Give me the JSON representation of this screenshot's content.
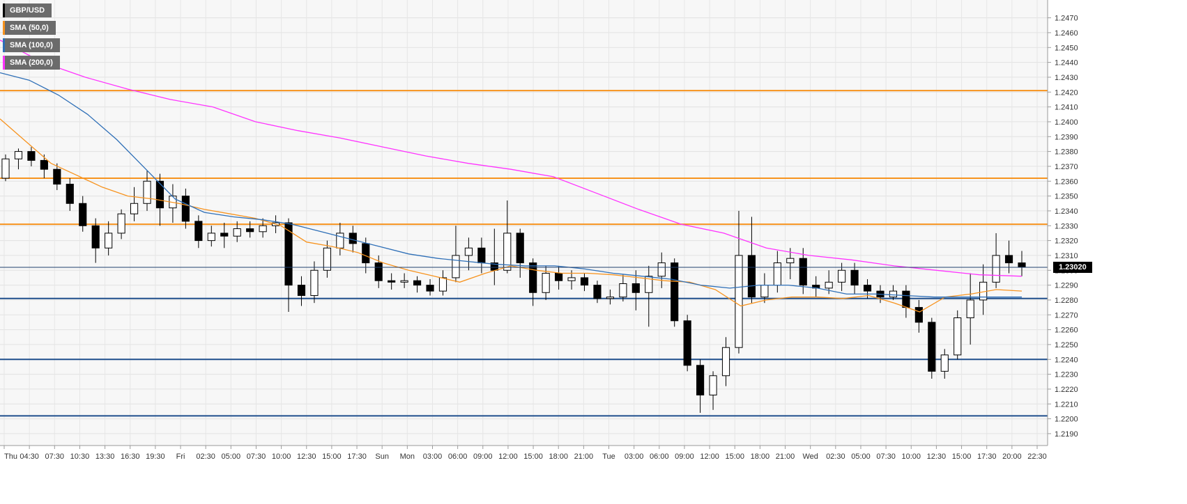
{
  "chart_data": {
    "type": "candlestick",
    "title": "",
    "symbol": "GBP/USD",
    "xlabel": "",
    "ylabel": "",
    "ylim": [
      1.2182,
      1.2482
    ],
    "y_ticks": [
      "1.2470",
      "1.2460",
      "1.2450",
      "1.2440",
      "1.2430",
      "1.2420",
      "1.2410",
      "1.2400",
      "1.2390",
      "1.2380",
      "1.2370",
      "1.2360",
      "1.2350",
      "1.2340",
      "1.2330",
      "1.2320",
      "1.2310",
      "1.2300",
      "1.2290",
      "1.2280",
      "1.2270",
      "1.2260",
      "1.2250",
      "1.2240",
      "1.2230",
      "1.2220",
      "1.2210",
      "1.2200",
      "1.2190"
    ],
    "x_ticks": [
      "Thu",
      "04:30",
      "07:30",
      "10:30",
      "13:30",
      "16:30",
      "19:30",
      "Fri",
      "02:30",
      "05:00",
      "07:30",
      "10:00",
      "12:30",
      "15:00",
      "17:30",
      "Sun",
      "Mon",
      "03:00",
      "06:00",
      "09:00",
      "12:00",
      "15:00",
      "18:00",
      "21:00",
      "Tue",
      "03:00",
      "06:00",
      "09:00",
      "12:00",
      "15:00",
      "18:00",
      "21:00",
      "Wed",
      "02:30",
      "05:00",
      "07:30",
      "10:00",
      "12:30",
      "15:00",
      "17:30",
      "20:00",
      "22:30"
    ],
    "legend": [
      {
        "name": "GBP/USD",
        "color": "#000000"
      },
      {
        "name": "SMA (50,0)",
        "color": "#f7931e"
      },
      {
        "name": "SMA (100,0)",
        "color": "#2e6fb7"
      },
      {
        "name": "SMA (200,0)",
        "color": "#ff33ff"
      }
    ],
    "last_price": "1.23020",
    "horizontal_levels": [
      {
        "value": 1.2421,
        "color": "#f7931e"
      },
      {
        "value": 1.2362,
        "color": "#f7931e"
      },
      {
        "value": 1.2331,
        "color": "#f7931e"
      },
      {
        "value": 1.2281,
        "color": "#1f4e8c"
      },
      {
        "value": 1.224,
        "color": "#1f4e8c"
      },
      {
        "value": 1.2202,
        "color": "#1f4e8c"
      }
    ],
    "sma_series": [
      {
        "name": "SMA (50,0)",
        "color": "#f7931e",
        "values": [
          1.2402,
          1.2387,
          1.2372,
          1.2364,
          1.2356,
          1.235,
          1.2348,
          1.2345,
          1.2341,
          1.2338,
          1.2335,
          1.233,
          1.2319,
          1.2316,
          1.2312,
          1.2305,
          1.23,
          1.2296,
          1.2292,
          1.2298,
          1.2303,
          1.23,
          1.2298,
          1.2298,
          1.2297,
          1.2295,
          1.2293,
          1.2292,
          1.2287,
          1.2276,
          1.228,
          1.2282,
          1.2282,
          1.2281,
          1.2283,
          1.2278,
          1.2272,
          1.2282,
          1.2284,
          1.2287,
          1.2286
        ]
      },
      {
        "name": "SMA (100,0)",
        "color": "#2e6fb7",
        "values": [
          1.2433,
          1.2428,
          1.2418,
          1.2405,
          1.2388,
          1.2368,
          1.2348,
          1.2339,
          1.2336,
          1.2334,
          1.2331,
          1.2326,
          1.2321,
          1.2316,
          1.2311,
          1.2308,
          1.2306,
          1.2304,
          1.2303,
          1.2303,
          1.2301,
          1.2298,
          1.2296,
          1.2294,
          1.229,
          1.2288,
          1.229,
          1.229,
          1.2288,
          1.2284,
          1.2284,
          1.2283,
          1.2282,
          1.2282,
          1.2282,
          1.2282
        ]
      },
      {
        "name": "SMA (200,0)",
        "color": "#ff33ff",
        "values": [
          1.2455,
          1.244,
          1.243,
          1.2422,
          1.2415,
          1.241,
          1.24,
          1.2394,
          1.2389,
          1.2383,
          1.2377,
          1.2372,
          1.2368,
          1.2363,
          1.2352,
          1.2341,
          1.2331,
          1.2325,
          1.2315,
          1.231,
          1.2307,
          1.2303,
          1.23,
          1.2297,
          1.2296
        ]
      }
    ],
    "candles": [
      [
        1.2362,
        1.2375,
        1.2378,
        1.236
      ],
      [
        1.2375,
        1.238,
        1.2382,
        1.2368
      ],
      [
        1.238,
        1.2374,
        1.2383,
        1.237
      ],
      [
        1.2374,
        1.2368,
        1.2378,
        1.2362
      ],
      [
        1.2368,
        1.2358,
        1.2372,
        1.2354
      ],
      [
        1.2358,
        1.2345,
        1.2362,
        1.234
      ],
      [
        1.2345,
        1.233,
        1.235,
        1.2326
      ],
      [
        1.233,
        1.2315,
        1.2335,
        1.2305
      ],
      [
        1.2315,
        1.2325,
        1.2333,
        1.231
      ],
      [
        1.2325,
        1.2338,
        1.2341,
        1.2321
      ],
      [
        1.2338,
        1.2345,
        1.2356,
        1.2333
      ],
      [
        1.2345,
        1.236,
        1.2367,
        1.234
      ],
      [
        1.236,
        1.2342,
        1.2365,
        1.233
      ],
      [
        1.2342,
        1.235,
        1.2358,
        1.2332
      ],
      [
        1.235,
        1.2333,
        1.2355,
        1.2328
      ],
      [
        1.2333,
        1.232,
        1.2337,
        1.2315
      ],
      [
        1.232,
        1.2325,
        1.233,
        1.2316
      ],
      [
        1.2325,
        1.2323,
        1.2332,
        1.2315
      ],
      [
        1.2323,
        1.2328,
        1.2333,
        1.2319
      ],
      [
        1.2328,
        1.2326,
        1.2333,
        1.2322
      ],
      [
        1.2326,
        1.233,
        1.2335,
        1.2322
      ],
      [
        1.233,
        1.2332,
        1.2337,
        1.2325
      ],
      [
        1.2332,
        1.229,
        1.2335,
        1.2272
      ],
      [
        1.229,
        1.2283,
        1.2296,
        1.2276
      ],
      [
        1.2283,
        1.23,
        1.2306,
        1.2278
      ],
      [
        1.23,
        1.2315,
        1.232,
        1.2295
      ],
      [
        1.2315,
        1.2325,
        1.2332,
        1.231
      ],
      [
        1.2325,
        1.2318,
        1.233,
        1.2312
      ],
      [
        1.2318,
        1.2305,
        1.2322,
        1.2298
      ],
      [
        1.2305,
        1.2293,
        1.231,
        1.2288
      ],
      [
        1.2293,
        1.2292,
        1.2298,
        1.2287
      ],
      [
        1.2292,
        1.2293,
        1.2298,
        1.2288
      ],
      [
        1.2293,
        1.229,
        1.2296,
        1.2285
      ],
      [
        1.229,
        1.2286,
        1.2294,
        1.2283
      ],
      [
        1.2286,
        1.2295,
        1.23,
        1.2283
      ],
      [
        1.2295,
        1.231,
        1.233,
        1.2292
      ],
      [
        1.231,
        1.2315,
        1.2322,
        1.23
      ],
      [
        1.2315,
        1.2305,
        1.2322,
        1.2298
      ],
      [
        1.2305,
        1.23,
        1.2328,
        1.229
      ],
      [
        1.23,
        1.2325,
        1.2347,
        1.2298
      ],
      [
        1.2325,
        1.2305,
        1.2328,
        1.2295
      ],
      [
        1.2305,
        1.2285,
        1.2308,
        1.2276
      ],
      [
        1.2285,
        1.2298,
        1.2303,
        1.228
      ],
      [
        1.2298,
        1.2293,
        1.2303,
        1.2287
      ],
      [
        1.2293,
        1.2295,
        1.23,
        1.2287
      ],
      [
        1.2295,
        1.229,
        1.2298,
        1.2286
      ],
      [
        1.229,
        1.2281,
        1.2293,
        1.2278
      ],
      [
        1.2281,
        1.2282,
        1.2287,
        1.2277
      ],
      [
        1.2282,
        1.2291,
        1.2297,
        1.2279
      ],
      [
        1.2291,
        1.2285,
        1.23,
        1.2273
      ],
      [
        1.2285,
        1.2296,
        1.2303,
        1.2262
      ],
      [
        1.2296,
        1.2305,
        1.2312,
        1.2288
      ],
      [
        1.2305,
        1.2266,
        1.2308,
        1.2262
      ],
      [
        1.2266,
        1.2236,
        1.227,
        1.2232
      ],
      [
        1.2236,
        1.2216,
        1.224,
        1.2204
      ],
      [
        1.2216,
        1.2229,
        1.2232,
        1.2206
      ],
      [
        1.2229,
        1.2248,
        1.2255,
        1.2222
      ],
      [
        1.2248,
        1.231,
        1.234,
        1.2244
      ],
      [
        1.231,
        1.2282,
        1.2336,
        1.2278
      ],
      [
        1.2282,
        1.229,
        1.2298,
        1.2278
      ],
      [
        1.229,
        1.2305,
        1.2313,
        1.2285
      ],
      [
        1.2305,
        1.2308,
        1.2315,
        1.2294
      ],
      [
        1.2308,
        1.229,
        1.2315,
        1.2284
      ],
      [
        1.229,
        1.2288,
        1.2296,
        1.2282
      ],
      [
        1.2288,
        1.2292,
        1.23,
        1.2284
      ],
      [
        1.2292,
        1.23,
        1.2305,
        1.2286
      ],
      [
        1.23,
        1.229,
        1.2305,
        1.2284
      ],
      [
        1.229,
        1.2286,
        1.2294,
        1.2281
      ],
      [
        1.2286,
        1.2282,
        1.229,
        1.2278
      ],
      [
        1.2282,
        1.2286,
        1.229,
        1.228
      ],
      [
        1.2286,
        1.2275,
        1.229,
        1.2268
      ],
      [
        1.2275,
        1.2265,
        1.228,
        1.2258
      ],
      [
        1.2265,
        1.2232,
        1.2268,
        1.2227
      ],
      [
        1.2232,
        1.2243,
        1.2247,
        1.2227
      ],
      [
        1.2243,
        1.2268,
        1.2273,
        1.224
      ],
      [
        1.2268,
        1.228,
        1.2298,
        1.225
      ],
      [
        1.228,
        1.2292,
        1.2304,
        1.227
      ],
      [
        1.2292,
        1.231,
        1.2325,
        1.2288
      ],
      [
        1.231,
        1.2305,
        1.232,
        1.2298
      ],
      [
        1.2305,
        1.2302,
        1.2313,
        1.2296
      ]
    ]
  }
}
